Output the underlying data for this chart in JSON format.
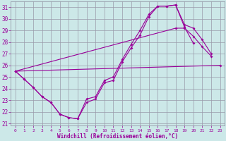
{
  "hours": [
    0,
    1,
    2,
    3,
    4,
    5,
    6,
    7,
    8,
    9,
    10,
    11,
    12,
    13,
    14,
    15,
    16,
    17,
    18,
    19,
    20,
    21,
    22,
    23
  ],
  "line1_y": [
    25.5,
    24.8,
    24.1,
    23.3,
    22.8,
    21.8,
    21.5,
    21.4,
    22.8,
    23.1,
    24.5,
    24.7,
    26.3,
    27.5,
    28.6,
    30.2,
    31.1,
    31.1,
    31.2,
    29.3,
    27.9,
    null,
    null,
    null
  ],
  "line2_y": [
    25.5,
    null,
    null,
    null,
    null,
    null,
    null,
    null,
    null,
    null,
    null,
    null,
    null,
    null,
    null,
    null,
    null,
    null,
    29.2,
    29.2,
    28.5,
    27.6,
    26.8,
    null
  ],
  "line3_y": [
    25.5,
    null,
    null,
    null,
    null,
    null,
    null,
    null,
    null,
    null,
    null,
    null,
    null,
    null,
    null,
    null,
    null,
    null,
    null,
    null,
    null,
    null,
    null,
    26.0
  ],
  "line4_y": [
    25.5,
    24.8,
    24.1,
    23.3,
    22.8,
    21.8,
    21.5,
    21.4,
    23.1,
    23.3,
    24.7,
    25.0,
    26.5,
    27.8,
    29.0,
    30.4,
    31.1,
    31.1,
    31.2,
    29.5,
    29.2,
    28.2,
    27.0,
    null
  ],
  "bg_color": "#cce8e8",
  "line_color": "#990099",
  "grid_color": "#9999aa",
  "ylabel_vals": [
    21,
    22,
    23,
    24,
    25,
    26,
    27,
    28,
    29,
    30,
    31
  ],
  "xlabel": "Windchill (Refroidissement éolien,°C)",
  "ymin": 20.8,
  "ymax": 31.5,
  "xmin": -0.5,
  "xmax": 23.5
}
